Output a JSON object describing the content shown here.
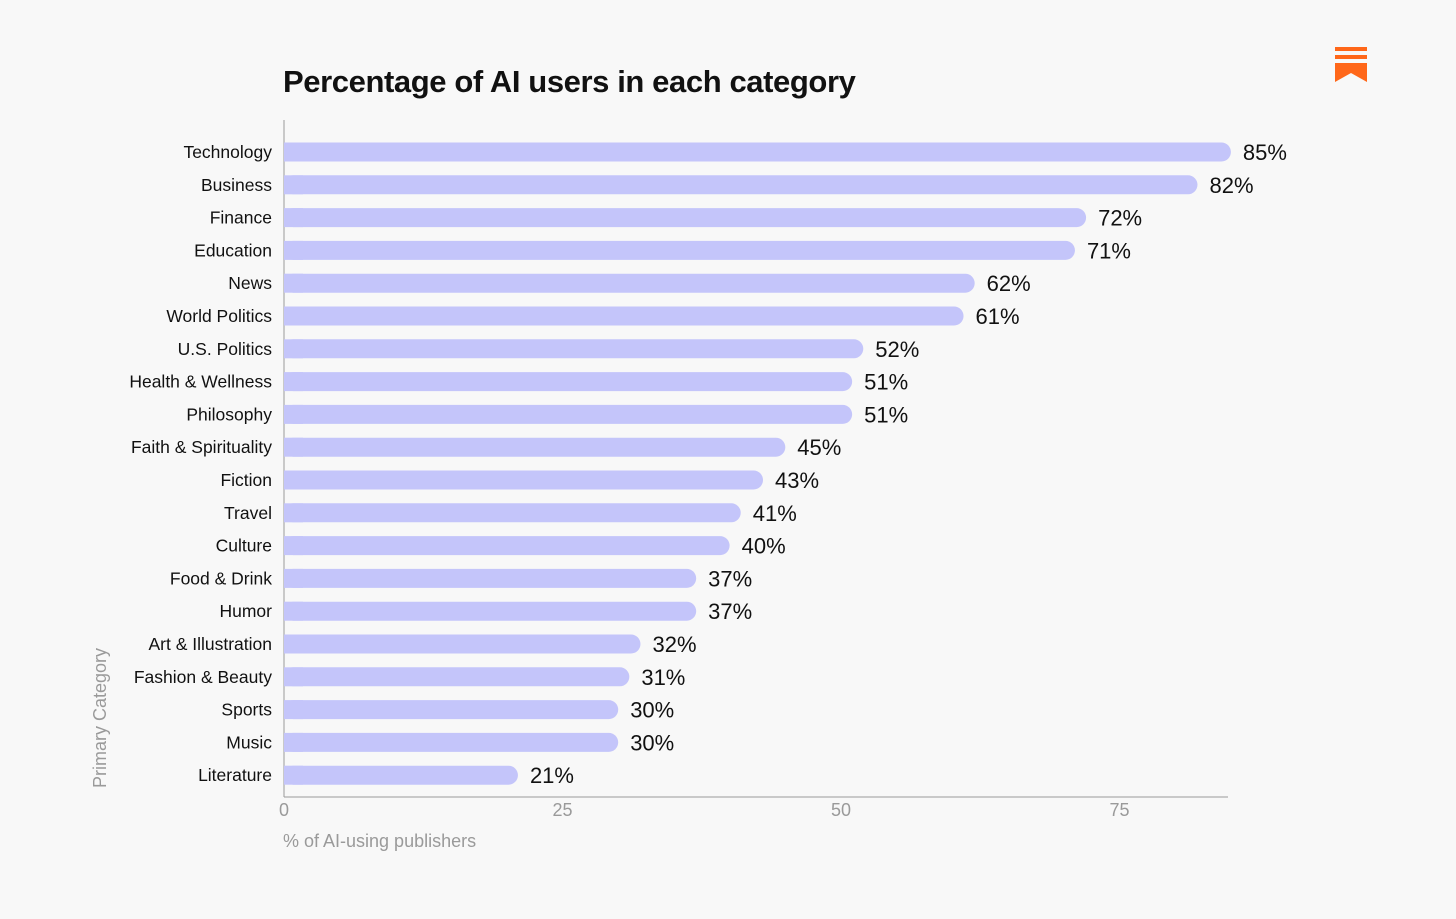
{
  "chart_data": {
    "type": "bar",
    "orientation": "horizontal",
    "title": "Percentage of AI users in each category",
    "xlabel": "% of AI-using publishers",
    "ylabel": "Primary Category",
    "xlim": [
      0,
      85
    ],
    "x_ticks": [
      "0",
      "25",
      "50",
      "75"
    ],
    "categories": [
      "Technology",
      "Business",
      "Finance",
      "Education",
      "News",
      "World Politics",
      "U.S. Politics",
      "Health & Wellness",
      "Philosophy",
      "Faith & Spirituality",
      "Fiction",
      "Travel",
      "Culture",
      "Food & Drink",
      "Humor",
      "Art & Illustration",
      "Fashion & Beauty",
      "Sports",
      "Music",
      "Literature"
    ],
    "values": [
      85,
      82,
      72,
      71,
      62,
      61,
      52,
      51,
      51,
      45,
      43,
      41,
      40,
      37,
      37,
      32,
      31,
      30,
      30,
      21
    ],
    "value_labels": [
      "85%",
      "82%",
      "72%",
      "71%",
      "62%",
      "61%",
      "52%",
      "51%",
      "51%",
      "45%",
      "43%",
      "41%",
      "40%",
      "37%",
      "37%",
      "32%",
      "31%",
      "30%",
      "30%",
      "21%"
    ],
    "bar_color": "#c4c5fa",
    "legend": "none",
    "grid": false
  },
  "brand": {
    "logo_icon": "substack-bookmark-icon",
    "logo_color": "#ff6719"
  }
}
